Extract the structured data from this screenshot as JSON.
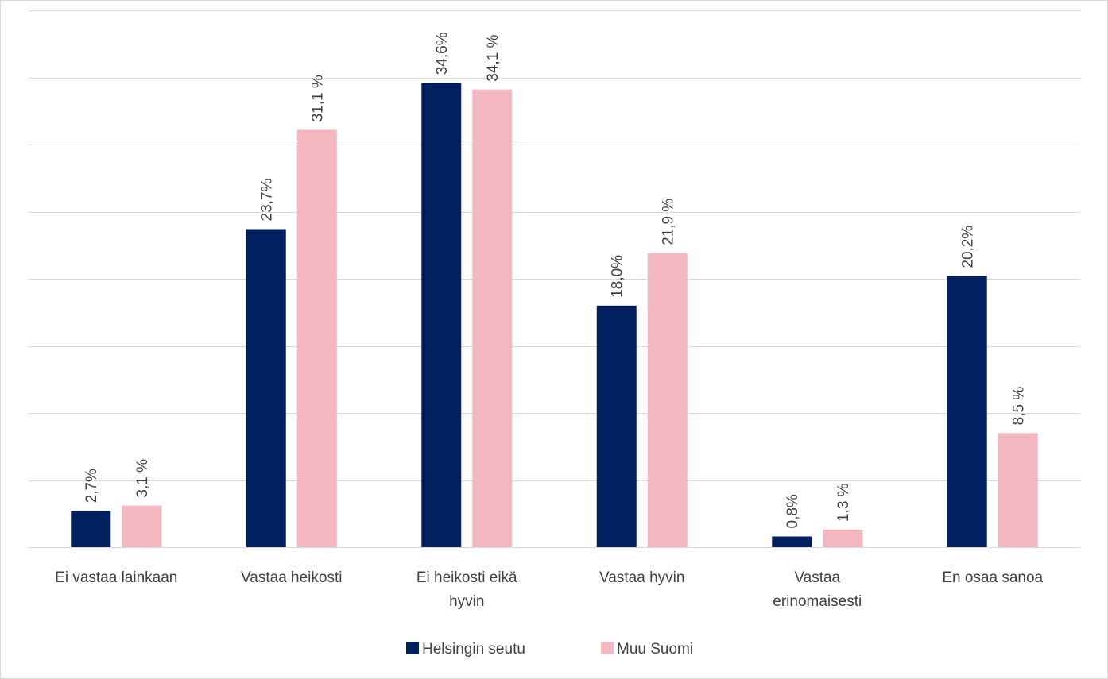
{
  "chart_data": {
    "type": "bar",
    "categories": [
      [
        "Ei vastaa lainkaan"
      ],
      [
        "Vastaa heikosti"
      ],
      [
        "Ei heikosti eikä",
        "hyvin"
      ],
      [
        "Vastaa hyvin"
      ],
      [
        "Vastaa",
        "erinomaisesti"
      ],
      [
        "En osaa sanoa"
      ]
    ],
    "series": [
      {
        "name": "Helsingin seutu",
        "color": "#002060",
        "values": [
          2.7,
          23.7,
          34.6,
          18.0,
          0.8,
          20.2
        ],
        "labels": [
          "2,7%",
          "23,7%",
          "34,6%",
          "18,0%",
          "0,8%",
          "20,2%"
        ]
      },
      {
        "name": "Muu Suomi",
        "color": "#f4b6bf",
        "values": [
          3.1,
          31.1,
          34.1,
          21.9,
          1.3,
          8.5
        ],
        "labels": [
          "3,1 %",
          "31,1 %",
          "34,1 %",
          "21,9 %",
          "1,3 %",
          "8,5 %"
        ]
      }
    ],
    "title": "",
    "xlabel": "",
    "ylabel": "",
    "ylim": [
      0,
      40
    ],
    "grid": true,
    "legend": "bottom",
    "data_label_orientation": "vertical"
  }
}
